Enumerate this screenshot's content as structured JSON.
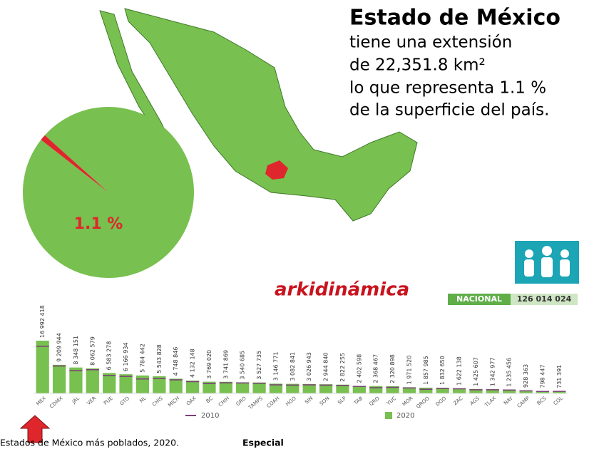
{
  "header": {
    "title": "Estado de México",
    "lines": [
      "tiene una extensión",
      "de 22,351.8 km²",
      "lo que representa 1.1 %",
      "de la superficie del país."
    ]
  },
  "logo": "arkidinámica",
  "nacional": {
    "label": "NACIONAL",
    "value": "126 014 024"
  },
  "caption": {
    "text": "Estados de México más poblados, 2020.",
    "source": "Especial"
  },
  "chart_data": [
    {
      "type": "pie",
      "categories": [
        "Estado de México",
        null
      ],
      "values": [
        1.1,
        98.9
      ],
      "value_labels": [
        "1.1 %",
        null
      ],
      "colors": [
        "#e0262d",
        "#78c04f"
      ]
    },
    {
      "type": "bar",
      "categories": [
        "MEX",
        "CDMX",
        "JAL",
        "VER",
        "PUE",
        "GTO",
        "NL",
        "CHIS",
        "MICH",
        "OAX",
        "BC",
        "CHIH",
        "GRO",
        "TAMPS",
        "COAH",
        "HGO",
        "SIN",
        "SON",
        "SLP",
        "TAB",
        "QRO",
        "YUC",
        "MOR",
        "QROO",
        "DGO",
        "ZAC",
        "AGS",
        "TLAX",
        "NAY",
        "CAMP",
        "BCS",
        "COL"
      ],
      "series": [
        {
          "name": "2010",
          "color": "#7a3f78",
          "values": [
            15175862,
            8851080,
            7350682,
            7643194,
            5779829,
            5486372,
            4653458,
            4796580,
            4351037,
            3801962,
            3155070,
            3406465,
            3388768,
            3268554,
            2748391,
            2665018,
            2767761,
            2662480,
            2585518,
            2238603,
            1827937,
            1955577,
            1777227,
            1325578,
            1632934,
            1490668,
            1184996,
            1169936,
            1084979,
            822441,
            637026,
            650555
          ]
        },
        {
          "name": "2020",
          "color": "#78c04f",
          "values": [
            16992418,
            9209944,
            8348151,
            8062579,
            6583278,
            6166934,
            5784442,
            5543828,
            4748846,
            4132148,
            3769020,
            3741869,
            3540685,
            3527735,
            3146771,
            3082841,
            3026943,
            2944840,
            2822255,
            2402598,
            2368467,
            2320898,
            1971520,
            1857985,
            1832650,
            1622138,
            1425607,
            1342977,
            1235456,
            928363,
            798447,
            731391
          ],
          "value_labels": [
            "16 992 418",
            "9 209 944",
            "8 348 151",
            "8 062 579",
            "6 583 278",
            "6 166 934",
            "5 784 442",
            "5 543 828",
            "4 748 846",
            "4 132 148",
            "3 769 020",
            "3 741 869",
            "3 540 685",
            "3 527 735",
            "3 146 771",
            "3 082 841",
            "3 026 943",
            "2 944 840",
            "2 822 255",
            "2 402 598",
            "2 368 467",
            "2 320 898",
            "1 971 520",
            "1 857 985",
            "1 832 650",
            "1 622 138",
            "1 425 607",
            "1 342 977",
            "1 235 456",
            "928 363",
            "798 447",
            "731 391"
          ]
        }
      ]
    }
  ]
}
